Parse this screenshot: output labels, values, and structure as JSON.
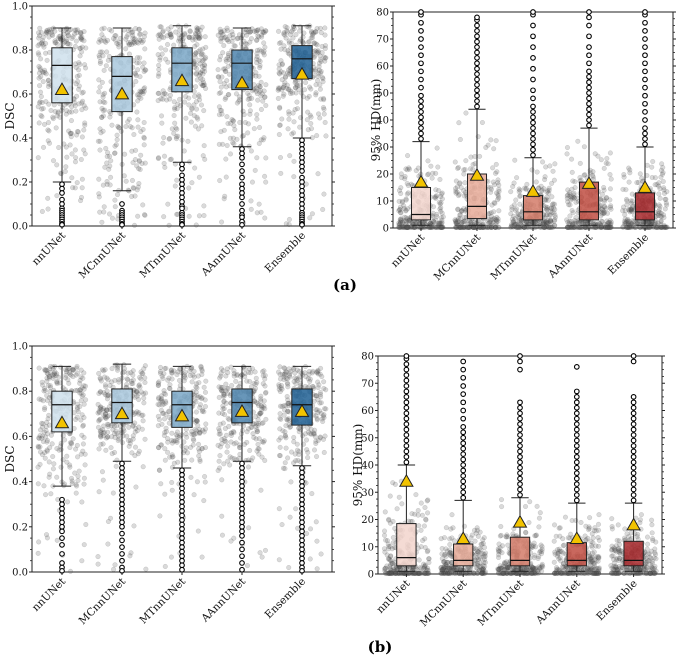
{
  "charts": [
    {
      "id": "a-dsc",
      "type": "box",
      "metric": "dsc",
      "ylabel": "DSC",
      "ylim": [
        0,
        1
      ],
      "yticks": [
        "0.0",
        "0.2",
        "0.4",
        "0.6",
        "0.8",
        "1.0"
      ],
      "categories": [
        "nnUNet",
        "MCnnUNet",
        "MTnnUNet",
        "AAnnUNet",
        "Ensemble"
      ],
      "colors": [
        "#cfe0ec",
        "#a9c8dd",
        "#7aa7c7",
        "#4d84ad",
        "#1f5f93"
      ],
      "boxes": [
        {
          "q1": 0.56,
          "median": 0.73,
          "q3": 0.81,
          "whislo": 0.2,
          "whishi": 0.9,
          "mean": 0.62,
          "outliers": [
            0.19,
            0.17,
            0.15,
            0.12,
            0.1,
            0.08,
            0.07,
            0.06,
            0.05,
            0.04,
            0.03,
            0.02,
            0.01,
            0.005
          ]
        },
        {
          "q1": 0.52,
          "median": 0.68,
          "q3": 0.77,
          "whislo": 0.16,
          "whishi": 0.9,
          "mean": 0.6,
          "outliers": [
            0.1,
            0.07,
            0.06,
            0.05,
            0.04,
            0.03,
            0.02,
            0.01,
            0.005
          ]
        },
        {
          "q1": 0.61,
          "median": 0.74,
          "q3": 0.81,
          "whislo": 0.29,
          "whishi": 0.91,
          "mean": 0.66,
          "outliers": [
            0.28,
            0.26,
            0.23,
            0.21,
            0.19,
            0.17,
            0.15,
            0.13,
            0.11,
            0.09,
            0.08,
            0.06,
            0.05,
            0.04,
            0.03,
            0.02,
            0.01,
            0.005
          ]
        },
        {
          "q1": 0.62,
          "median": 0.74,
          "q3": 0.8,
          "whislo": 0.36,
          "whishi": 0.9,
          "mean": 0.65,
          "outliers": [
            0.35,
            0.33,
            0.31,
            0.28,
            0.25,
            0.22,
            0.19,
            0.17,
            0.15,
            0.13,
            0.1,
            0.07,
            0.05,
            0.04,
            0.02,
            0.005
          ]
        },
        {
          "q1": 0.67,
          "median": 0.76,
          "q3": 0.82,
          "whislo": 0.4,
          "whishi": 0.91,
          "mean": 0.69,
          "outliers": [
            0.39,
            0.37,
            0.35,
            0.33,
            0.31,
            0.29,
            0.27,
            0.25,
            0.22,
            0.2,
            0.18,
            0.16,
            0.14,
            0.12,
            0.1,
            0.08,
            0.06,
            0.05,
            0.04,
            0.03,
            0.02,
            0.01,
            0.005
          ]
        }
      ]
    },
    {
      "id": "a-hd",
      "type": "box",
      "metric": "hd",
      "ylabel": "95% HD(mm)",
      "ylim": [
        0,
        80
      ],
      "yticks": [
        "0",
        "10",
        "20",
        "30",
        "40",
        "50",
        "60",
        "70",
        "80"
      ],
      "categories": [
        "nnUNet",
        "MCnnUNet",
        "MTnnUNet",
        "AAnnUNet",
        "Ensemble"
      ],
      "colors": [
        "#f2d5cd",
        "#e6aa98",
        "#d47b68",
        "#c04e42",
        "#a6272a"
      ],
      "boxes": [
        {
          "q1": 3.0,
          "median": 5.0,
          "q3": 15.0,
          "whislo": 1.0,
          "whishi": 32.0,
          "mean": 17.0,
          "outliers": [
            33,
            35,
            37,
            39,
            41,
            43,
            45,
            47,
            49,
            52,
            55,
            58,
            61,
            64,
            67,
            70,
            73,
            76,
            79,
            80
          ]
        },
        {
          "q1": 3.5,
          "median": 8.0,
          "q3": 20.0,
          "whislo": 1.0,
          "whishi": 44.0,
          "mean": 19.5,
          "outliers": [
            45,
            47,
            49,
            51,
            53,
            55,
            57,
            59,
            61,
            63,
            65,
            67,
            69,
            71,
            73,
            75,
            77,
            78
          ]
        },
        {
          "q1": 3.0,
          "median": 6.0,
          "q3": 12.0,
          "whislo": 1.0,
          "whishi": 26.0,
          "mean": 13.5,
          "outliers": [
            27,
            29,
            31,
            33,
            35,
            37,
            39,
            41,
            43,
            45,
            48,
            51,
            55,
            59,
            63,
            67,
            71,
            75,
            79,
            80
          ]
        },
        {
          "q1": 3.0,
          "median": 6.0,
          "q3": 17.0,
          "whislo": 1.0,
          "whishi": 37.0,
          "mean": 16.5,
          "outliers": [
            38,
            40,
            42,
            44,
            46,
            48,
            50,
            52,
            54,
            56,
            58,
            61,
            64,
            67,
            71,
            75,
            78,
            80
          ]
        },
        {
          "q1": 3.0,
          "median": 6.0,
          "q3": 13.0,
          "whislo": 1.0,
          "whishi": 30.0,
          "mean": 15.0,
          "outliers": [
            31,
            33,
            35,
            37,
            40,
            43,
            46,
            49,
            52,
            55,
            58,
            61,
            64,
            67,
            70,
            73,
            76,
            79,
            80
          ]
        }
      ]
    },
    {
      "id": "b-dsc",
      "type": "box",
      "metric": "dsc",
      "ylabel": "DSC",
      "ylim": [
        0,
        1
      ],
      "yticks": [
        "0.0",
        "0.2",
        "0.4",
        "0.6",
        "0.8",
        "1.0"
      ],
      "categories": [
        "nnUNet",
        "MCnnUNet",
        "MTnnUNet",
        "AAnnUNet",
        "Ensemble"
      ],
      "colors": [
        "#cfe0ec",
        "#a9c8dd",
        "#7aa7c7",
        "#4d84ad",
        "#1f5f93"
      ],
      "boxes": [
        {
          "q1": 0.62,
          "median": 0.74,
          "q3": 0.8,
          "whislo": 0.38,
          "whishi": 0.91,
          "mean": 0.66,
          "outliers": [
            0.32,
            0.3,
            0.28,
            0.26,
            0.24,
            0.22,
            0.2,
            0.18,
            0.15,
            0.12,
            0.08,
            0.04,
            0.02,
            0.005
          ]
        },
        {
          "q1": 0.66,
          "median": 0.75,
          "q3": 0.81,
          "whislo": 0.49,
          "whishi": 0.92,
          "mean": 0.7,
          "outliers": [
            0.48,
            0.46,
            0.44,
            0.42,
            0.4,
            0.38,
            0.36,
            0.34,
            0.32,
            0.3,
            0.28,
            0.26,
            0.24,
            0.22,
            0.2,
            0.17,
            0.14,
            0.11,
            0.08,
            0.05,
            0.02,
            0.005
          ]
        },
        {
          "q1": 0.64,
          "median": 0.74,
          "q3": 0.8,
          "whislo": 0.46,
          "whishi": 0.91,
          "mean": 0.69,
          "outliers": [
            0.45,
            0.43,
            0.41,
            0.39,
            0.37,
            0.35,
            0.33,
            0.31,
            0.29,
            0.27,
            0.25,
            0.23,
            0.21,
            0.19,
            0.17,
            0.15,
            0.13,
            0.11,
            0.09,
            0.07,
            0.05,
            0.03,
            0.01
          ]
        },
        {
          "q1": 0.66,
          "median": 0.75,
          "q3": 0.81,
          "whislo": 0.49,
          "whishi": 0.91,
          "mean": 0.71,
          "outliers": [
            0.48,
            0.46,
            0.44,
            0.42,
            0.4,
            0.38,
            0.36,
            0.34,
            0.32,
            0.3,
            0.28,
            0.26,
            0.24,
            0.22,
            0.2,
            0.18,
            0.16,
            0.13,
            0.1,
            0.07,
            0.04,
            0.01
          ]
        },
        {
          "q1": 0.65,
          "median": 0.74,
          "q3": 0.81,
          "whislo": 0.47,
          "whishi": 0.91,
          "mean": 0.71,
          "outliers": [
            0.46,
            0.44,
            0.42,
            0.4,
            0.38,
            0.36,
            0.34,
            0.32,
            0.3,
            0.28,
            0.26,
            0.24,
            0.22,
            0.2,
            0.18,
            0.16,
            0.14,
            0.12,
            0.1,
            0.08,
            0.06,
            0.04,
            0.02,
            0.005
          ]
        }
      ]
    },
    {
      "id": "b-hd",
      "type": "box",
      "metric": "hd",
      "ylabel": "95% HD(mm)",
      "ylim": [
        0,
        80
      ],
      "yticks": [
        "0",
        "10",
        "20",
        "30",
        "40",
        "50",
        "60",
        "70",
        "80"
      ],
      "categories": [
        "nnUNet",
        "MCnnUNet",
        "MTnnUNet",
        "AAnnUNet",
        "Ensemble"
      ],
      "colors": [
        "#f2d5cd",
        "#e6aa98",
        "#d47b68",
        "#c04e42",
        "#a6272a"
      ],
      "boxes": [
        {
          "q1": 3.0,
          "median": 6.0,
          "q3": 18.5,
          "whislo": 1.0,
          "whishi": 40.0,
          "mean": 34.0,
          "outliers": [
            41,
            43,
            45,
            47,
            49,
            51,
            53,
            55,
            57,
            59,
            61,
            63,
            65,
            67,
            69,
            71,
            73,
            75,
            77,
            79,
            80
          ]
        },
        {
          "q1": 3.0,
          "median": 5.0,
          "q3": 11.0,
          "whislo": 1.0,
          "whishi": 27.0,
          "mean": 13.0,
          "outliers": [
            28,
            30,
            32,
            34,
            36,
            38,
            40,
            42,
            44,
            46,
            48,
            50,
            52,
            54,
            57,
            60,
            63,
            66,
            69,
            72,
            75,
            78
          ]
        },
        {
          "q1": 3.0,
          "median": 5.0,
          "q3": 13.5,
          "whislo": 1.0,
          "whishi": 28.0,
          "mean": 19.0,
          "outliers": [
            29,
            31,
            33,
            35,
            37,
            39,
            41,
            43,
            45,
            47,
            49,
            51,
            53,
            55,
            57,
            59,
            61,
            63,
            75,
            78,
            80
          ]
        },
        {
          "q1": 3.0,
          "median": 5.0,
          "q3": 11.5,
          "whislo": 1.0,
          "whishi": 26.0,
          "mean": 13.0,
          "outliers": [
            27,
            29,
            31,
            33,
            35,
            37,
            39,
            41,
            43,
            45,
            47,
            49,
            51,
            53,
            55,
            57,
            59,
            61,
            63,
            65,
            67,
            76
          ]
        },
        {
          "q1": 3.0,
          "median": 5.0,
          "q3": 12.0,
          "whislo": 1.0,
          "whishi": 26.0,
          "mean": 18.0,
          "outliers": [
            27,
            29,
            31,
            33,
            35,
            37,
            39,
            41,
            43,
            45,
            47,
            49,
            51,
            53,
            55,
            57,
            59,
            61,
            63,
            65,
            78,
            80
          ]
        }
      ]
    }
  ],
  "chart_data": [
    {
      "type": "box",
      "title": "(a) DSC",
      "xlabel": "",
      "ylabel": "DSC",
      "ylim": [
        0,
        1
      ],
      "categories": [
        "nnUNet",
        "MCnnUNet",
        "MTnnUNet",
        "AAnnUNet",
        "Ensemble"
      ],
      "medians": [
        0.73,
        0.68,
        0.74,
        0.74,
        0.76
      ],
      "means": [
        0.62,
        0.6,
        0.66,
        0.65,
        0.69
      ]
    },
    {
      "type": "box",
      "title": "(a) 95% HD",
      "xlabel": "",
      "ylabel": "95% HD(mm)",
      "ylim": [
        0,
        80
      ],
      "categories": [
        "nnUNet",
        "MCnnUNet",
        "MTnnUNet",
        "AAnnUNet",
        "Ensemble"
      ],
      "medians": [
        5.0,
        8.0,
        6.0,
        6.0,
        6.0
      ],
      "means": [
        17.0,
        19.5,
        13.5,
        16.5,
        15.0
      ]
    },
    {
      "type": "box",
      "title": "(b) DSC",
      "xlabel": "",
      "ylabel": "DSC",
      "ylim": [
        0,
        1
      ],
      "categories": [
        "nnUNet",
        "MCnnUNet",
        "MTnnUNet",
        "AAnnUNet",
        "Ensemble"
      ],
      "medians": [
        0.74,
        0.75,
        0.74,
        0.75,
        0.74
      ],
      "means": [
        0.66,
        0.7,
        0.69,
        0.71,
        0.71
      ]
    },
    {
      "type": "box",
      "title": "(b) 95% HD",
      "xlabel": "",
      "ylabel": "95% HD(mm)",
      "ylim": [
        0,
        80
      ],
      "categories": [
        "nnUNet",
        "MCnnUNet",
        "MTnnUNet",
        "AAnnUNet",
        "Ensemble"
      ],
      "medians": [
        6.0,
        5.0,
        5.0,
        5.0,
        5.0
      ],
      "means": [
        34.0,
        13.0,
        19.0,
        13.0,
        18.0
      ]
    }
  ],
  "labels": {
    "panel_a": "(a)",
    "panel_b": "(b)"
  },
  "style": {
    "mean_marker_color": "#f2c300",
    "points_color": "#555555",
    "outlier_color": "#000000"
  }
}
